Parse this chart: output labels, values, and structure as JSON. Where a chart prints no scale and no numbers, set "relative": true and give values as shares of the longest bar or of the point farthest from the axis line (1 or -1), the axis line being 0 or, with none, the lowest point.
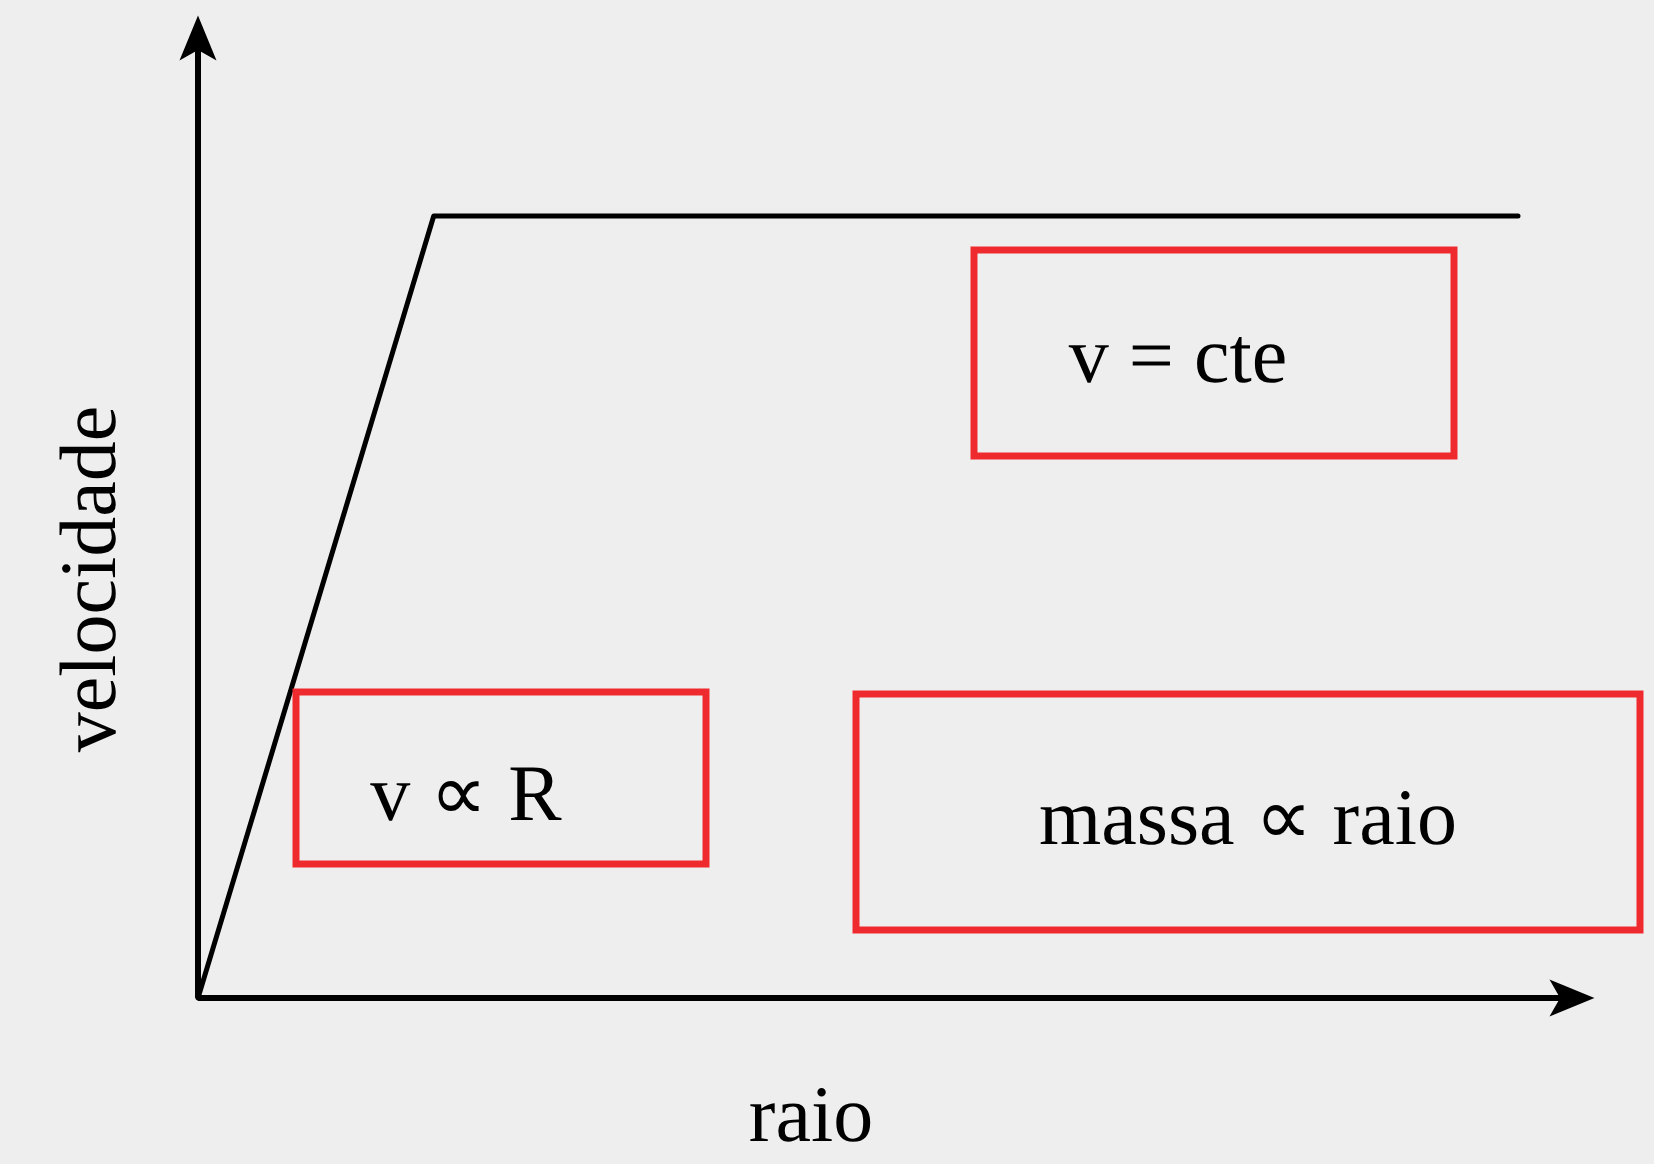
{
  "chart_data": {
    "type": "line",
    "relative": true,
    "xlabel": "raio",
    "ylabel": "velocidade",
    "categories": [
      null,
      null,
      null,
      null,
      null,
      null,
      null,
      null,
      null,
      null,
      null,
      null,
      null,
      null,
      null,
      null,
      null,
      null,
      null,
      null,
      null,
      null,
      null,
      null,
      null,
      null,
      null,
      null,
      null
    ],
    "series": [
      {
        "color": "#000000",
        "values": [
          0,
          0.2,
          0.4,
          0.6,
          0.8,
          1,
          1,
          1,
          1,
          1,
          1,
          1,
          1,
          1,
          1,
          1,
          1,
          1,
          1,
          1,
          1,
          1,
          1,
          1,
          1,
          1,
          1,
          1,
          1
        ]
      }
    ],
    "line_style": "solid",
    "annotations": [
      "v = cte",
      "v ∝ R",
      "massa ∝ raio"
    ]
  }
}
